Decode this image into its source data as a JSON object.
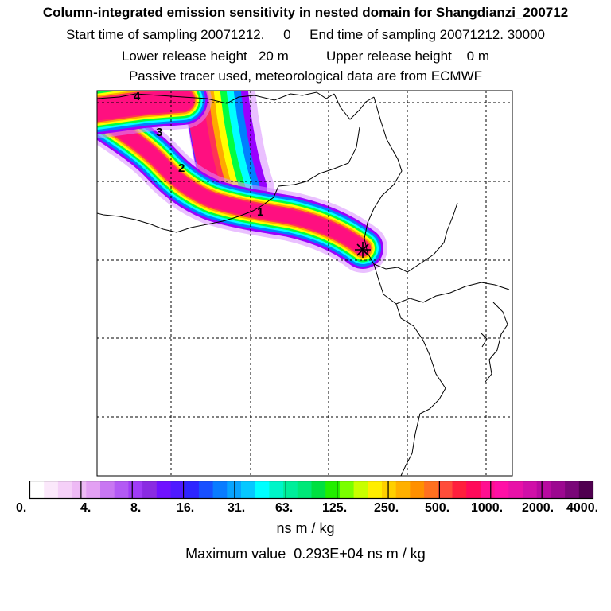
{
  "header": {
    "title": "Column-integrated emission sensitivity in nested domain for Shangdianzi_200712",
    "sampling_line": "Start time of sampling 20071212.     0     End time of sampling 20071212. 30000",
    "release_line": "Lower release height   20 m          Upper release height    0 m",
    "tracer_line": "Passive tracer used, meteorological data are from ECMWF"
  },
  "map": {
    "day_labels": [
      "1",
      "2",
      "3",
      "4"
    ],
    "receptor_marker": "asterisk",
    "grid_color": "#000000",
    "plume_colors": {
      "outer": "#d98cff",
      "violet": "#9900ff",
      "blue": "#0080ff",
      "cyan": "#00ffff",
      "green": "#00ff40",
      "yellow": "#ffff00",
      "orange": "#ffaa00",
      "red": "#ff3355",
      "core": "#ff0f80"
    }
  },
  "colorbar": {
    "segment_colors": [
      "#ffffff",
      "#fbe8fb",
      "#f5d0f8",
      "#eebaf5",
      "#e3a0f3",
      "#c877f2",
      "#b35af4",
      "#a03cf6",
      "#8a2be2",
      "#7012ff",
      "#4f1aff",
      "#2d25ff",
      "#1850ff",
      "#0a7cff",
      "#08a4ff",
      "#06c8ff",
      "#00ffff",
      "#00f5c8",
      "#00ee9a",
      "#00e878",
      "#00e040",
      "#22ee00",
      "#7aff00",
      "#c8ff00",
      "#ffee00",
      "#ffd000",
      "#ffb000",
      "#ff9000",
      "#ff7020",
      "#ff4d3a",
      "#ff1f3d",
      "#ff0a5a",
      "#ff1090",
      "#ff10a6",
      "#e812a8",
      "#d010a8",
      "#b80aa0",
      "#9c0890",
      "#7a0678",
      "#500050"
    ],
    "tick_labels": [
      "0.",
      "4.",
      "8.",
      "16.",
      "31.",
      "63.",
      "125.",
      "250.",
      "500.",
      "1000.",
      "2000.",
      "4000."
    ],
    "unit": "ns m / kg"
  },
  "footer": {
    "max_value": "Maximum value  0.293E+04 ns m / kg"
  }
}
